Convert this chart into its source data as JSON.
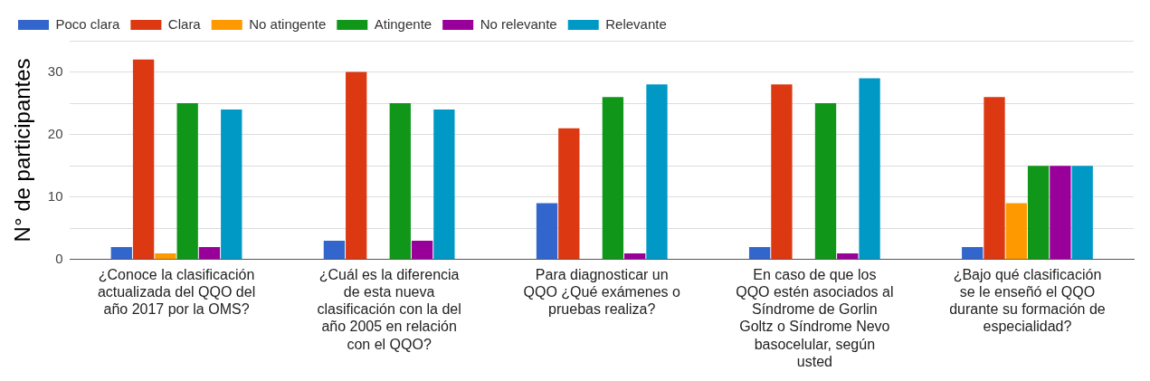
{
  "chart_data": {
    "type": "bar",
    "ylabel": "N° de participantes",
    "categories": [
      "¿Conoce la clasificación actualizada del QQO del año 2017 por la OMS?",
      "¿Cuál es la diferencia de esta nueva clasificación con la del año 2005 en relación con el QQO?",
      "Para diagnosticar un QQO ¿Qué exámenes o pruebas realiza?",
      "En caso de que los QQO estén asociados al Síndrome de Gorlin Goltz o Síndrome Nevo basocelular, según usted",
      "¿Bajo qué clasificación se le enseñó el QQO durante su formación de especialidad?"
    ],
    "series": [
      {
        "name": "Poco clara",
        "color": "#3366cc",
        "values": [
          2,
          3,
          9,
          2,
          2
        ]
      },
      {
        "name": "Clara",
        "color": "#dc3912",
        "values": [
          32,
          30,
          21,
          28,
          26
        ]
      },
      {
        "name": "No atingente",
        "color": "#ff9900",
        "values": [
          1,
          0,
          0,
          0,
          9
        ]
      },
      {
        "name": "Atingente",
        "color": "#109618",
        "values": [
          25,
          25,
          26,
          25,
          15
        ]
      },
      {
        "name": "No relevante",
        "color": "#990099",
        "values": [
          2,
          3,
          1,
          1,
          15
        ]
      },
      {
        "name": "Relevante",
        "color": "#0099c6",
        "values": [
          24,
          24,
          28,
          29,
          15
        ]
      }
    ],
    "ylim": [
      0,
      35
    ],
    "yticks": [
      0,
      {
        "value": 5,
        "label": null
      },
      10,
      {
        "value": 15,
        "label": null
      },
      20,
      {
        "value": 25,
        "label": null
      },
      30,
      {
        "value": 35,
        "label": null
      }
    ],
    "grid": "y",
    "legend": "top left"
  }
}
